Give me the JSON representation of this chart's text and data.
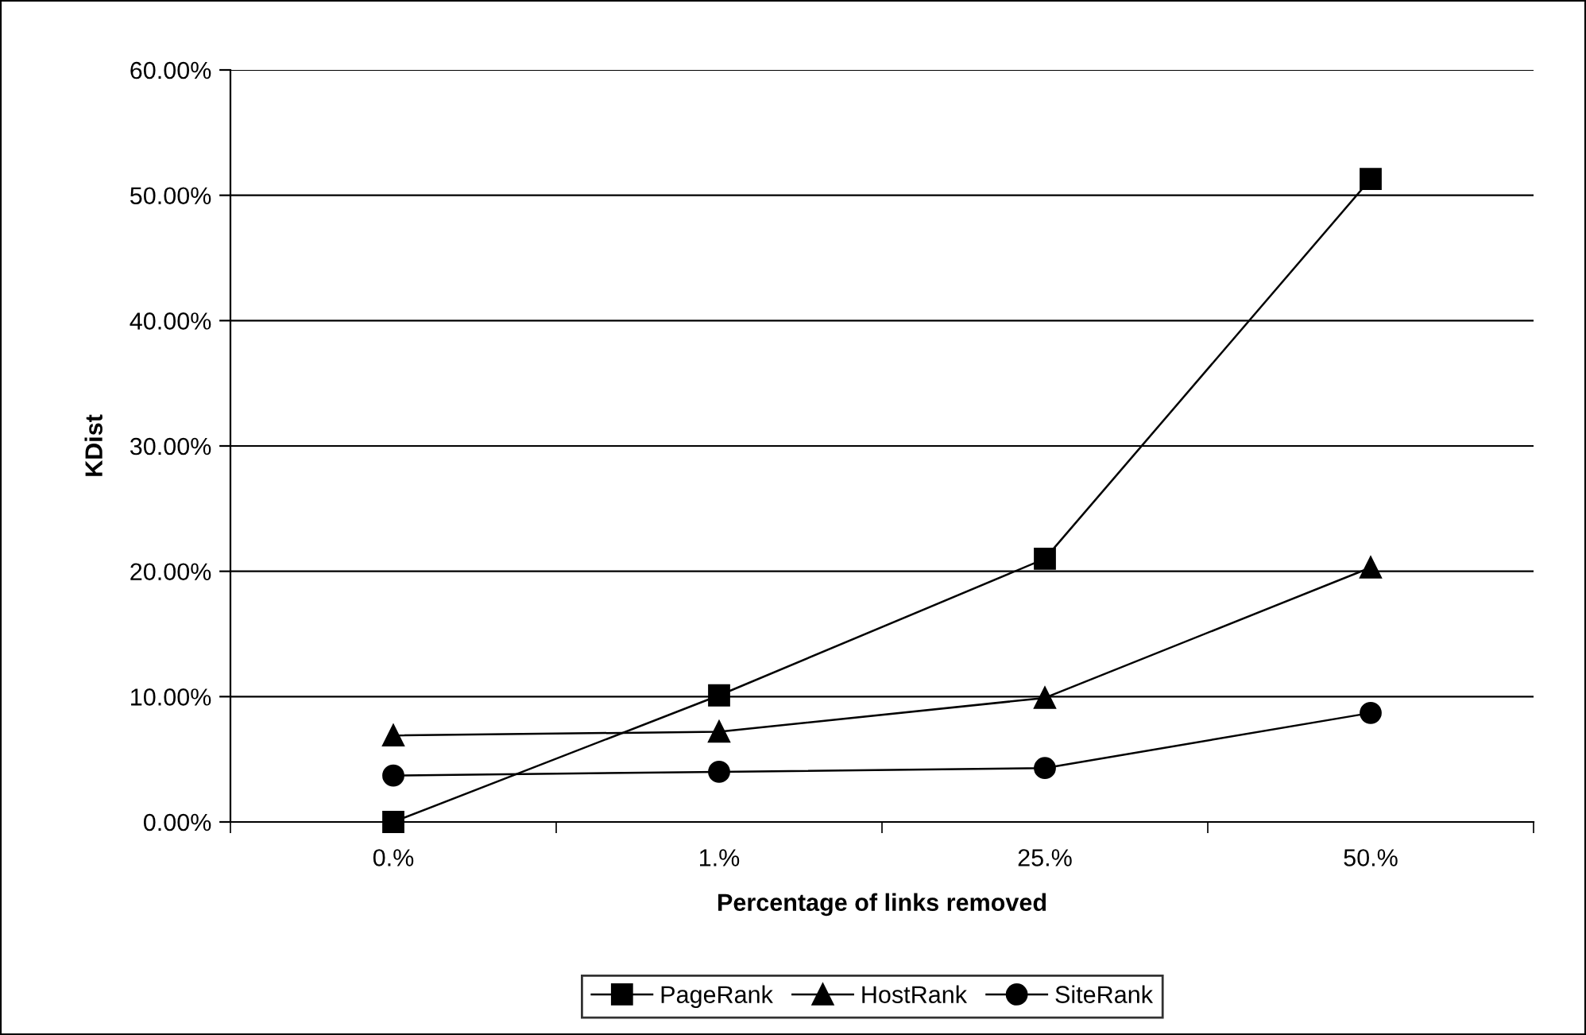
{
  "chart_data": {
    "type": "line",
    "xlabel": "Percentage of links removed",
    "ylabel": "KDist",
    "categories": [
      "0.%",
      "1.%",
      "25.%",
      "50.%"
    ],
    "series": [
      {
        "name": "PageRank",
        "color": "#000000",
        "marker": "square",
        "values": [
          0.0,
          10.1,
          21.0,
          51.3
        ]
      },
      {
        "name": "HostRank",
        "color": "#000000",
        "marker": "triangle",
        "values": [
          6.9,
          7.2,
          9.9,
          20.3
        ]
      },
      {
        "name": "SiteRank",
        "color": "#000000",
        "marker": "circle",
        "values": [
          3.7,
          4.0,
          4.3,
          8.7
        ]
      }
    ],
    "ylim": [
      0,
      60
    ],
    "yticks": [
      {
        "value": 0,
        "label": "0.00%"
      },
      {
        "value": 10,
        "label": "10.00%"
      },
      {
        "value": 20,
        "label": "20.00%"
      },
      {
        "value": 30,
        "label": "30.00%"
      },
      {
        "value": 40,
        "label": "40.00%"
      },
      {
        "value": 50,
        "label": "50.00%"
      },
      {
        "value": 60,
        "label": "60.00%"
      }
    ],
    "grid": "y",
    "legend": "bottom",
    "line_style": "solid"
  }
}
